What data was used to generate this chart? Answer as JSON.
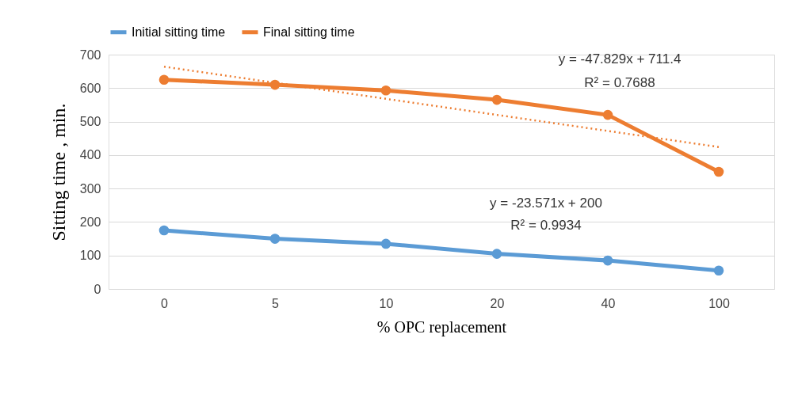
{
  "chart_data": {
    "type": "line",
    "xlabel": "% OPC replacement",
    "ylabel": "Sitting time , min.",
    "categories": [
      "0",
      "5",
      "10",
      "20",
      "40",
      "100"
    ],
    "series": [
      {
        "name": "Initial sitting time",
        "color": "#5b9bd5",
        "marker": "circle",
        "line_style": "solid",
        "values": [
          175,
          150,
          135,
          105,
          85,
          55
        ]
      },
      {
        "name": "Final sitting time",
        "color": "#ed7d31",
        "marker": "circle",
        "line_style": "solid",
        "values": [
          625,
          610,
          593,
          565,
          520,
          350
        ]
      },
      {
        "type": "line",
        "color": "#ed7d31",
        "marker": "none",
        "line_style": "dotted",
        "x": [
          "0",
          "100"
        ],
        "values": [
          664,
          424
        ]
      }
    ],
    "ylim": [
      0,
      700
    ],
    "yticks": [
      0,
      100,
      200,
      300,
      400,
      500,
      600,
      700
    ],
    "grid": "y",
    "legend": "top",
    "annotations": [
      "y = -47.829x + 711.4",
      "R² = 0.7688",
      "y = -23.571x + 200",
      "R² = 0.9934"
    ]
  }
}
